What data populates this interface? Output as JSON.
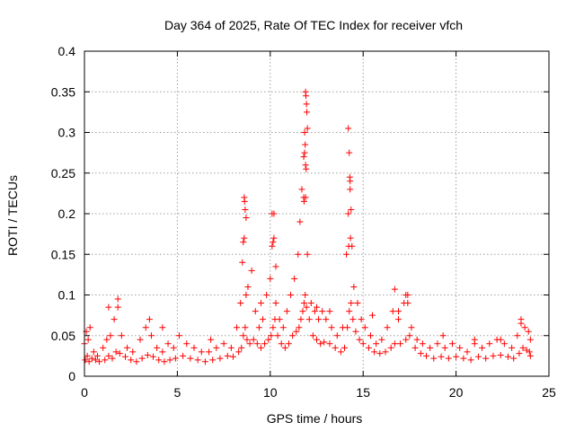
{
  "chart_data": {
    "type": "scatter",
    "title": "Day 364 of 2025, Rate Of TEC Index for receiver vfch",
    "xlabel": "GPS time / hours",
    "ylabel": "ROTI / TECUs",
    "xlim": [
      0,
      25
    ],
    "ylim": [
      0,
      0.4
    ],
    "xticks": [
      0,
      5,
      10,
      15,
      20,
      25
    ],
    "xtick_labels": [
      "0",
      "5",
      "10",
      "15",
      "20",
      "25"
    ],
    "yticks": [
      0,
      0.05,
      0.1,
      0.15,
      0.2,
      0.25,
      0.3,
      0.35,
      0.4
    ],
    "ytick_labels": [
      "0",
      "0.05",
      "0.1",
      "0.15",
      "0.2",
      "0.25",
      "0.3",
      "0.35",
      "0.4"
    ],
    "grid": true,
    "marker": "+",
    "marker_color": "#ff0000",
    "series": [
      {
        "name": "ROTI",
        "x": [
          0.0,
          0.1,
          0.2,
          0.3,
          0.5,
          0.7,
          1.0,
          1.2,
          1.4,
          1.6,
          1.8,
          2.0,
          2.3,
          2.6,
          3.0,
          3.3,
          3.6,
          3.9,
          4.2,
          4.5,
          4.8,
          5.1,
          5.5,
          5.9,
          6.3,
          6.7,
          7.1,
          7.5,
          7.9,
          8.2,
          8.4,
          8.5,
          8.6,
          8.7,
          8.8,
          9.0,
          9.2,
          9.4,
          9.6,
          9.8,
          10.0,
          10.1,
          10.2,
          10.3,
          10.5,
          10.7,
          10.9,
          11.1,
          11.3,
          11.5,
          11.6,
          11.7,
          11.8,
          11.85,
          11.9,
          12.0,
          12.2,
          12.4,
          12.6,
          12.8,
          13.0,
          13.3,
          13.6,
          13.9,
          14.1,
          14.2,
          14.3,
          14.4,
          14.5,
          14.7,
          14.9,
          15.1,
          15.4,
          15.7,
          16.0,
          16.3,
          16.6,
          16.9,
          17.2,
          17.4,
          17.6,
          17.9,
          18.2,
          18.6,
          19.0,
          19.4,
          19.8,
          20.2,
          20.6,
          21.0,
          21.4,
          21.8,
          22.2,
          22.6,
          23.0,
          23.3,
          23.5,
          23.7,
          23.9,
          24.0,
          0.05,
          0.15,
          0.25,
          0.4,
          0.6,
          0.8,
          1.1,
          1.3,
          1.5,
          1.7,
          1.9,
          2.2,
          2.5,
          2.8,
          3.1,
          3.4,
          3.7,
          4.0,
          4.3,
          4.6,
          4.9,
          5.3,
          5.7,
          6.1,
          6.5,
          6.9,
          7.3,
          7.7,
          8.0,
          8.3,
          8.45,
          8.55,
          8.65,
          8.75,
          8.9,
          9.1,
          9.3,
          9.5,
          9.7,
          9.9,
          10.05,
          10.15,
          10.25,
          10.4,
          10.6,
          10.8,
          11.0,
          11.2,
          11.4,
          11.55,
          11.65,
          11.75,
          11.82,
          11.88,
          11.95,
          12.1,
          12.3,
          12.5,
          12.7,
          12.9,
          13.2,
          13.5,
          13.8,
          14.0,
          14.15,
          14.25,
          14.35,
          14.45,
          14.6,
          14.8,
          15.0,
          15.3,
          15.6,
          15.9,
          16.2,
          16.5,
          16.7,
          17.0,
          17.3,
          17.5,
          17.8,
          18.1,
          18.4,
          18.8,
          19.2,
          19.6,
          20.0,
          20.4,
          20.8,
          21.2,
          21.6,
          22.0,
          22.4,
          22.8,
          23.1,
          23.4,
          23.6,
          23.8,
          23.95,
          24.0,
          8.55,
          8.6,
          8.62,
          8.65,
          8.7,
          10.1,
          10.15,
          10.2,
          10.3,
          11.9,
          11.92,
          11.95,
          11.97,
          12.0,
          11.85,
          11.88,
          11.9,
          11.93,
          11.8,
          11.82,
          14.2,
          14.25,
          14.28,
          14.3,
          14.35,
          14.32,
          14.22,
          16.7,
          17.3,
          17.4,
          1.3,
          1.8,
          3.5,
          4.2,
          6.8,
          9.5,
          12.5,
          13.2,
          15.5,
          16.9,
          19.3,
          21.0,
          22.4,
          23.5
        ],
        "y": [
          0.04,
          0.055,
          0.045,
          0.06,
          0.03,
          0.025,
          0.035,
          0.045,
          0.05,
          0.07,
          0.085,
          0.05,
          0.035,
          0.03,
          0.045,
          0.06,
          0.05,
          0.035,
          0.03,
          0.04,
          0.035,
          0.05,
          0.04,
          0.035,
          0.03,
          0.03,
          0.035,
          0.04,
          0.035,
          0.06,
          0.09,
          0.14,
          0.17,
          0.1,
          0.11,
          0.13,
          0.08,
          0.06,
          0.07,
          0.1,
          0.12,
          0.16,
          0.2,
          0.09,
          0.07,
          0.06,
          0.08,
          0.1,
          0.12,
          0.15,
          0.19,
          0.23,
          0.27,
          0.3,
          0.22,
          0.15,
          0.09,
          0.08,
          0.07,
          0.08,
          0.07,
          0.06,
          0.05,
          0.06,
          0.15,
          0.2,
          0.24,
          0.16,
          0.11,
          0.09,
          0.07,
          0.06,
          0.05,
          0.04,
          0.045,
          0.06,
          0.08,
          0.07,
          0.09,
          0.1,
          0.06,
          0.045,
          0.04,
          0.035,
          0.04,
          0.035,
          0.04,
          0.035,
          0.03,
          0.04,
          0.035,
          0.04,
          0.045,
          0.04,
          0.035,
          0.05,
          0.065,
          0.06,
          0.055,
          0.045,
          0.02,
          0.025,
          0.018,
          0.022,
          0.02,
          0.018,
          0.02,
          0.025,
          0.022,
          0.03,
          0.028,
          0.024,
          0.02,
          0.018,
          0.022,
          0.026,
          0.024,
          0.02,
          0.018,
          0.02,
          0.022,
          0.025,
          0.022,
          0.02,
          0.018,
          0.02,
          0.022,
          0.025,
          0.024,
          0.03,
          0.035,
          0.05,
          0.06,
          0.045,
          0.04,
          0.045,
          0.04,
          0.035,
          0.04,
          0.045,
          0.05,
          0.06,
          0.07,
          0.05,
          0.04,
          0.035,
          0.04,
          0.05,
          0.055,
          0.06,
          0.07,
          0.08,
          0.09,
          0.1,
          0.085,
          0.07,
          0.05,
          0.045,
          0.04,
          0.042,
          0.04,
          0.035,
          0.03,
          0.035,
          0.06,
          0.08,
          0.09,
          0.07,
          0.055,
          0.045,
          0.04,
          0.035,
          0.03,
          0.028,
          0.03,
          0.035,
          0.04,
          0.04,
          0.045,
          0.05,
          0.035,
          0.028,
          0.025,
          0.022,
          0.024,
          0.022,
          0.024,
          0.022,
          0.02,
          0.024,
          0.022,
          0.025,
          0.026,
          0.024,
          0.022,
          0.028,
          0.035,
          0.032,
          0.03,
          0.025,
          0.165,
          0.22,
          0.215,
          0.205,
          0.195,
          0.2,
          0.165,
          0.17,
          0.135,
          0.35,
          0.345,
          0.335,
          0.325,
          0.305,
          0.275,
          0.285,
          0.26,
          0.255,
          0.22,
          0.215,
          0.305,
          0.275,
          0.245,
          0.23,
          0.205,
          0.17,
          0.16,
          0.107,
          0.1,
          0.09,
          0.085,
          0.095,
          0.07,
          0.06,
          0.045,
          0.09,
          0.085,
          0.08,
          0.075,
          0.08,
          0.05,
          0.045,
          0.045,
          0.07
        ]
      }
    ]
  }
}
